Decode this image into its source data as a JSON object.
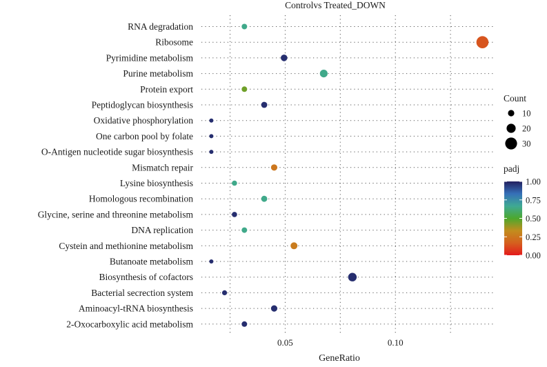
{
  "chart_data": {
    "type": "scatter",
    "title": "Controlvs Treated_DOWN",
    "xlabel": "GeneRatio",
    "ylabel": "",
    "xlim": [
      0.012,
      0.145
    ],
    "xticks": [
      0.05,
      0.1
    ],
    "xtick_labels": [
      "0.05",
      "0.10"
    ],
    "grid": true,
    "categories": [
      "RNA degradation",
      "Ribosome",
      "Pyrimidine metabolism",
      "Purine metabolism",
      "Protein export",
      "Peptidoglycan biosynthesis",
      "Oxidative phosphorylation",
      "One carbon pool by folate",
      "O-Antigen nucleotide sugar biosynthesis",
      "Mismatch repair",
      "Lysine biosynthesis",
      "Homologous recombination",
      "Glycine, serine and threonine metabolism",
      "DNA replication",
      "Cystein and methionine metabolism",
      "Butanoate metabolism",
      "Biosynthesis of cofactors",
      "Bacterial secrection system",
      "Aminoacyl-tRNA biosynthesis",
      "2-Oxocarboxylic acid metabolism"
    ],
    "points": [
      {
        "term": "RNA degradation",
        "gene_ratio": 0.0315,
        "count": 7,
        "padj": 0.65
      },
      {
        "term": "Ribosome",
        "gene_ratio": 0.1395,
        "count": 31,
        "padj": 0.14
      },
      {
        "term": "Pyrimidine metabolism",
        "gene_ratio": 0.0495,
        "count": 11,
        "padj": 0.97
      },
      {
        "term": "Purine metabolism",
        "gene_ratio": 0.0675,
        "count": 15,
        "padj": 0.65
      },
      {
        "term": "Protein export",
        "gene_ratio": 0.0315,
        "count": 7,
        "padj": 0.45
      },
      {
        "term": "Peptidoglycan biosynthesis",
        "gene_ratio": 0.0405,
        "count": 9,
        "padj": 0.97
      },
      {
        "term": "Oxidative phosphorylation",
        "gene_ratio": 0.0165,
        "count": 2,
        "padj": 0.97
      },
      {
        "term": "One carbon pool by folate",
        "gene_ratio": 0.0165,
        "count": 2,
        "padj": 0.97
      },
      {
        "term": "O-Antigen nucleotide sugar biosynthesis",
        "gene_ratio": 0.0165,
        "count": 2,
        "padj": 0.97
      },
      {
        "term": "Mismatch repair",
        "gene_ratio": 0.045,
        "count": 10,
        "padj": 0.25
      },
      {
        "term": "Lysine biosynthesis",
        "gene_ratio": 0.027,
        "count": 6,
        "padj": 0.65
      },
      {
        "term": "Homologous recombination",
        "gene_ratio": 0.0405,
        "count": 9,
        "padj": 0.65
      },
      {
        "term": "Glycine, serine and threonine metabolism",
        "gene_ratio": 0.027,
        "count": 6,
        "padj": 0.97
      },
      {
        "term": "DNA replication",
        "gene_ratio": 0.0315,
        "count": 7,
        "padj": 0.65
      },
      {
        "term": "Cystein and methionine metabolism",
        "gene_ratio": 0.054,
        "count": 12,
        "padj": 0.27
      },
      {
        "term": "Butanoate metabolism",
        "gene_ratio": 0.0165,
        "count": 2,
        "padj": 0.97
      },
      {
        "term": "Biosynthesis of cofactors",
        "gene_ratio": 0.0805,
        "count": 18,
        "padj": 0.97
      },
      {
        "term": "Bacterial secrection system",
        "gene_ratio": 0.0225,
        "count": 5,
        "padj": 0.97
      },
      {
        "term": "Aminoacyl-tRNA biosynthesis",
        "gene_ratio": 0.045,
        "count": 10,
        "padj": 0.97
      },
      {
        "term": "2-Oxocarboxylic acid metabolism",
        "gene_ratio": 0.0315,
        "count": 7,
        "padj": 0.97
      }
    ],
    "legend_size": {
      "title": "Count",
      "values": [
        10,
        20,
        30
      ],
      "labels": [
        "10",
        "20",
        "30"
      ]
    },
    "legend_color": {
      "title": "padj",
      "range": [
        0.0,
        1.0
      ],
      "ticks": [
        1.0,
        0.75,
        0.5,
        0.25,
        0.0
      ],
      "tick_labels": [
        "1.00",
        "0.75",
        "0.50",
        "0.25",
        "0.00"
      ],
      "colors": [
        "#E41A1C",
        "#D5601E",
        "#C28D1E",
        "#4CA82E",
        "#3FA994",
        "#3570B8",
        "#23205F"
      ]
    },
    "legend_placement": "right"
  }
}
